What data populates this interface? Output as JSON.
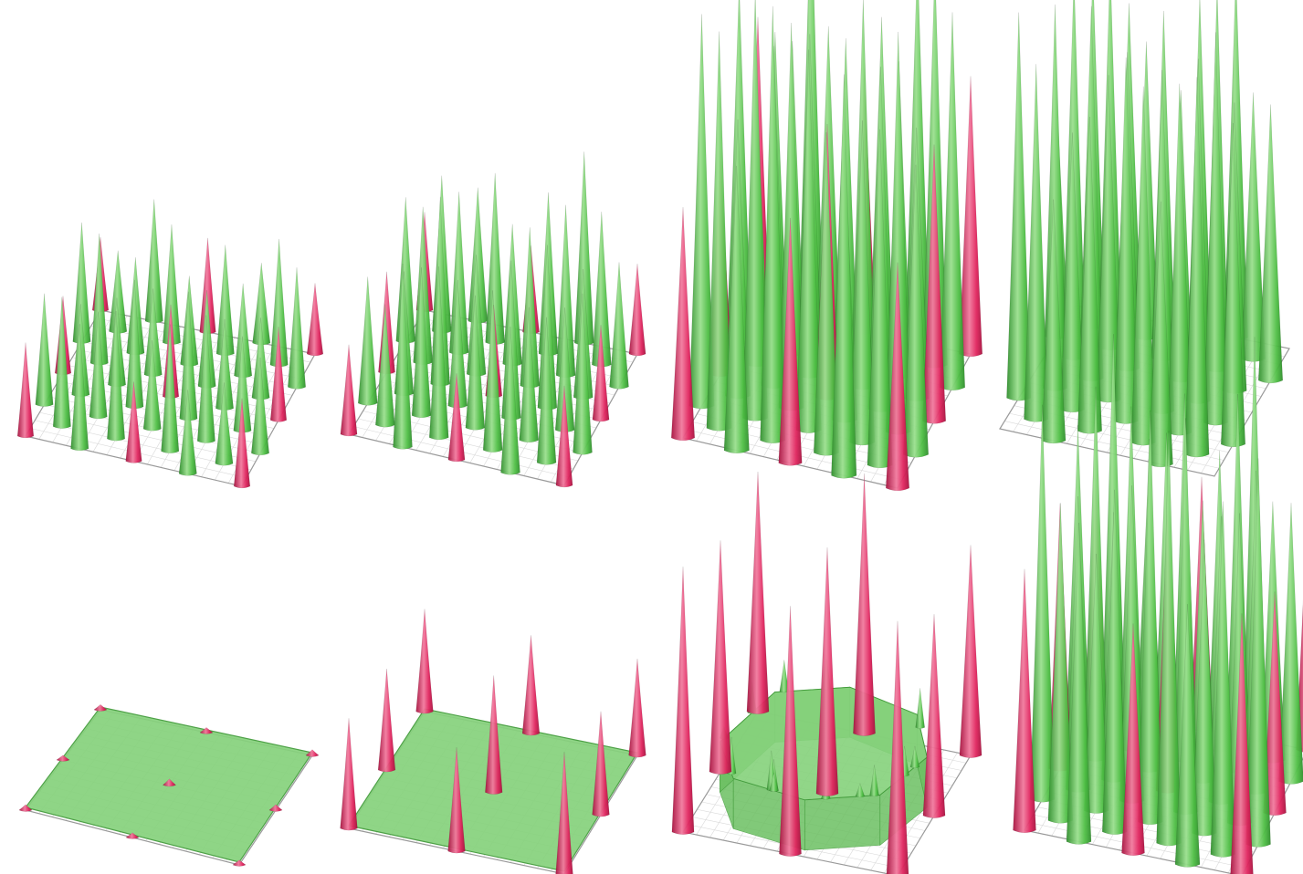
{
  "colors": {
    "background": "#ffffff",
    "green_spike": "#4fbf45",
    "green_spike_dark": "#2f8f2c",
    "green_spike_light": "#9be08f",
    "green_surface": "#86d27c",
    "green_surface_edge": "#3f9a38",
    "red_spike": "#e0245e",
    "red_spike_dark": "#a8123f",
    "red_spike_light": "#f27a9e",
    "grid_line": "#d9d9d9",
    "plane_edge": "#9a9a9a"
  },
  "panels": [
    {
      "id": "top-1",
      "row": 1,
      "col": 1,
      "surface": "spikes",
      "red_spike_relative_height": 0.35,
      "green_spike_relative_height": 0.55
    },
    {
      "id": "top-2",
      "row": 1,
      "col": 2,
      "surface": "spikes",
      "red_spike_relative_height": 0.35,
      "green_spike_relative_height": 0.7
    },
    {
      "id": "top-3",
      "row": 1,
      "col": 3,
      "surface": "spikes",
      "red_spike_relative_height": 0.6,
      "green_spike_relative_height": 1.0
    },
    {
      "id": "top-4",
      "row": 1,
      "col": 4,
      "surface": "spikes",
      "red_spike_relative_height": 0.0,
      "green_spike_relative_height": 1.0
    },
    {
      "id": "bottom-1",
      "row": 2,
      "col": 1,
      "surface": "flat-sheet",
      "red_spike_relative_height": 0.06,
      "green_spike_relative_height": 0.0
    },
    {
      "id": "bottom-2",
      "row": 2,
      "col": 2,
      "surface": "flat-sheet",
      "red_spike_relative_height": 0.4,
      "green_spike_relative_height": 0.0
    },
    {
      "id": "bottom-3",
      "row": 2,
      "col": 3,
      "surface": "raised-plateau",
      "red_spike_relative_height": 0.75,
      "green_spike_relative_height": 0.0
    },
    {
      "id": "bottom-4",
      "row": 2,
      "col": 4,
      "surface": "spikes",
      "red_spike_relative_height": 0.6,
      "green_spike_relative_height": 1.0
    }
  ]
}
